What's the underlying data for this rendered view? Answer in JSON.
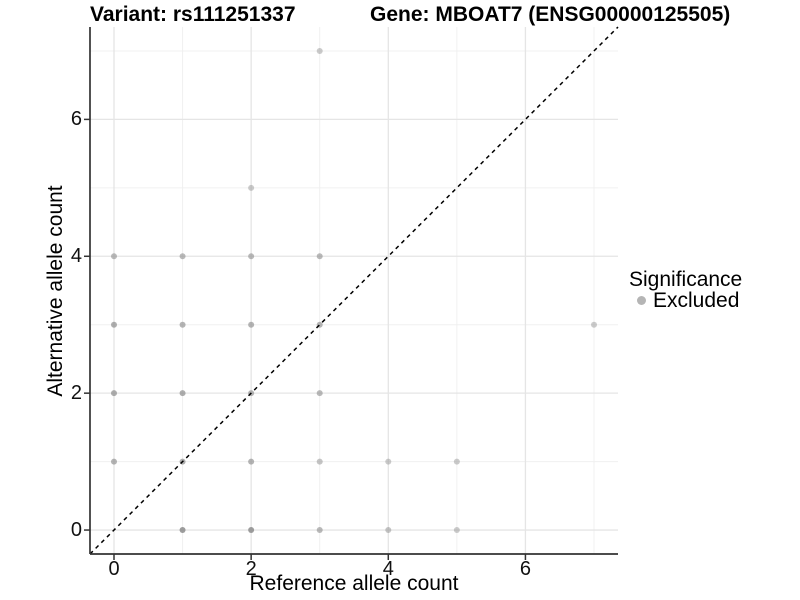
{
  "header": {
    "variant_title": "Variant: rs111251337",
    "gene_title": "Gene: MBOAT7 (ENSG00000125505)"
  },
  "chart_data": {
    "type": "scatter",
    "title_left": "Variant: rs111251337",
    "title_right": "Gene: MBOAT7 (ENSG00000125505)",
    "xlabel": "Reference allele count",
    "ylabel": "Alternative allele count",
    "xlim": [
      -0.35,
      7.35
    ],
    "ylim": [
      -0.35,
      7.35
    ],
    "xticks": [
      0,
      2,
      4,
      6
    ],
    "yticks": [
      0,
      2,
      4,
      6
    ],
    "grid_major": [
      0,
      2,
      4,
      6
    ],
    "grid_minor": [
      1,
      3,
      5,
      7
    ],
    "grid_on": true,
    "identity_line": {
      "style": "dashed",
      "slope": 1,
      "intercept": 0,
      "color": "#000000"
    },
    "point_color": "#8c8c8c",
    "point_radius": 3,
    "series": [
      {
        "name": "Excluded",
        "points": [
          {
            "x": 1,
            "y": 0,
            "alpha": 0.85
          },
          {
            "x": 2,
            "y": 0,
            "alpha": 0.85
          },
          {
            "x": 3,
            "y": 0,
            "alpha": 0.6
          },
          {
            "x": 4,
            "y": 0,
            "alpha": 0.5
          },
          {
            "x": 5,
            "y": 0,
            "alpha": 0.45
          },
          {
            "x": 0,
            "y": 1,
            "alpha": 0.65
          },
          {
            "x": 1,
            "y": 1,
            "alpha": 0.7
          },
          {
            "x": 2,
            "y": 1,
            "alpha": 0.65
          },
          {
            "x": 3,
            "y": 1,
            "alpha": 0.5
          },
          {
            "x": 4,
            "y": 1,
            "alpha": 0.45
          },
          {
            "x": 5,
            "y": 1,
            "alpha": 0.45
          },
          {
            "x": 0,
            "y": 2,
            "alpha": 0.7
          },
          {
            "x": 1,
            "y": 2,
            "alpha": 0.7
          },
          {
            "x": 2,
            "y": 2,
            "alpha": 0.65
          },
          {
            "x": 3,
            "y": 2,
            "alpha": 0.6
          },
          {
            "x": 0,
            "y": 3,
            "alpha": 0.7
          },
          {
            "x": 1,
            "y": 3,
            "alpha": 0.65
          },
          {
            "x": 2,
            "y": 3,
            "alpha": 0.65
          },
          {
            "x": 3,
            "y": 3,
            "alpha": 0.65
          },
          {
            "x": 7,
            "y": 3,
            "alpha": 0.45
          },
          {
            "x": 0,
            "y": 4,
            "alpha": 0.6
          },
          {
            "x": 1,
            "y": 4,
            "alpha": 0.6
          },
          {
            "x": 2,
            "y": 4,
            "alpha": 0.6
          },
          {
            "x": 3,
            "y": 4,
            "alpha": 0.6
          },
          {
            "x": 2,
            "y": 5,
            "alpha": 0.45
          },
          {
            "x": 3,
            "y": 7,
            "alpha": 0.45
          }
        ]
      }
    ],
    "legend": {
      "position": "right",
      "title": "Significance",
      "items": [
        {
          "label": "Excluded",
          "color": "#b5b5b5"
        }
      ]
    }
  },
  "colors": {
    "background": "#ffffff",
    "grid_major": "#e5e5e5",
    "grid_minor": "#f0f0f0",
    "axis_line": "#333333",
    "tick_mark": "#333333",
    "dash_line": "#000000"
  }
}
